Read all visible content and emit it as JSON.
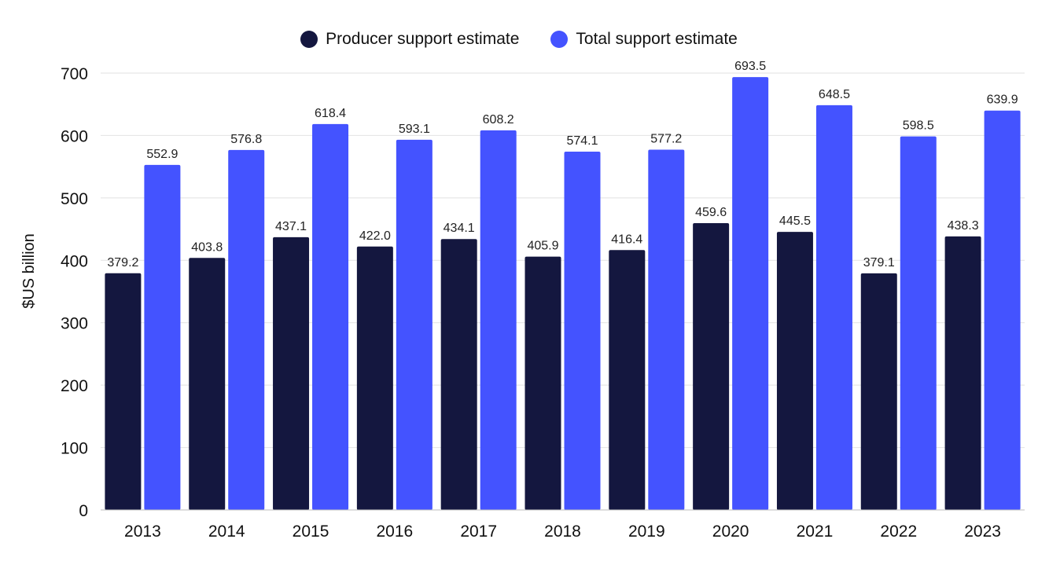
{
  "chart_data": {
    "type": "bar",
    "title": "",
    "xlabel": "",
    "ylabel": "$US billion",
    "ylim": [
      0,
      700
    ],
    "yticks": [
      0,
      100,
      200,
      300,
      400,
      500,
      600,
      700
    ],
    "grid": true,
    "legend_position": "top-center",
    "categories": [
      "2013",
      "2014",
      "2015",
      "2016",
      "2017",
      "2018",
      "2019",
      "2020",
      "2021",
      "2022",
      "2023"
    ],
    "series": [
      {
        "name": "Producer support estimate",
        "color": "#14173f",
        "values": [
          379.2,
          403.8,
          437.1,
          422.0,
          434.1,
          405.9,
          416.4,
          459.6,
          445.5,
          379.1,
          438.3
        ],
        "labels": [
          "379.2",
          "403.8",
          "437.1",
          "422.0",
          "434.1",
          "405.9",
          "416.4",
          "459.6",
          "445.5",
          "379.1",
          "438.3"
        ]
      },
      {
        "name": "Total support estimate",
        "color": "#4453ff",
        "values": [
          552.9,
          576.8,
          618.4,
          593.1,
          608.2,
          574.1,
          577.2,
          693.5,
          648.5,
          598.5,
          639.9
        ],
        "labels": [
          "552.9",
          "576.8",
          "618.4",
          "593.1",
          "608.2",
          "574.1",
          "577.2",
          "693.5",
          "648.5",
          "598.5",
          "639.9"
        ]
      }
    ]
  }
}
